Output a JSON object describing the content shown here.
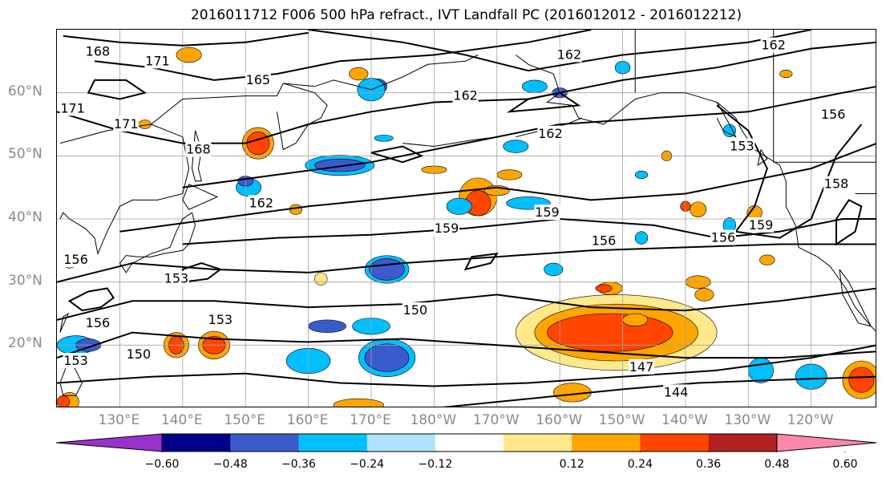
{
  "title": "2016011712 F006 500 hPa refract., IVT Landfall PC (2016012012 - 2016012212)",
  "lat_labels": [
    "60°N",
    "50°N",
    "40°N",
    "30°N",
    "20°N"
  ],
  "lat_values": [
    60,
    50,
    40,
    30,
    20
  ],
  "lon_labels": [
    "130°E",
    "140°E",
    "150°E",
    "160°E",
    "170°E",
    "180°W",
    "170°W",
    "160°W",
    "150°W",
    "140°W",
    "130°W",
    "120°W"
  ],
  "lon_values": [
    130,
    140,
    150,
    160,
    170,
    180,
    190,
    200,
    210,
    220,
    230,
    240
  ],
  "map_extent": {
    "lon_min": 120,
    "lon_max": 250.5,
    "lat_min": 10,
    "lat_max": 70
  },
  "colorbar": {
    "tick_labels": [
      "−0.60",
      "−0.48",
      "−0.36",
      "−0.24",
      "−0.12",
      "0.12",
      "0.24",
      "0.36",
      "0.48",
      "0.60"
    ],
    "colors": [
      "#9932cc",
      "#00008b",
      "#3b5bcd",
      "#00bfff",
      "#b0e2ff",
      "#ffffff",
      "#ffe98a",
      "#ffa500",
      "#ff4500",
      "#b22222",
      "#ff88aa"
    ]
  },
  "contour_labels": [
    {
      "text": "168",
      "lon": 126.5,
      "lat": 66.5
    },
    {
      "text": "171",
      "lon": 136,
      "lat": 65
    },
    {
      "text": "165",
      "lon": 152,
      "lat": 62
    },
    {
      "text": "171",
      "lon": 122.5,
      "lat": 57.5
    },
    {
      "text": "171",
      "lon": 131,
      "lat": 55
    },
    {
      "text": "168",
      "lon": 142.5,
      "lat": 51
    },
    {
      "text": "162",
      "lon": 185,
      "lat": 59.5
    },
    {
      "text": "162",
      "lon": 201.5,
      "lat": 66
    },
    {
      "text": "162",
      "lon": 234,
      "lat": 67.5
    },
    {
      "text": "162",
      "lon": 198.5,
      "lat": 53.5
    },
    {
      "text": "156",
      "lon": 243.5,
      "lat": 56.5
    },
    {
      "text": "153",
      "lon": 229,
      "lat": 51.5
    },
    {
      "text": "158",
      "lon": 244,
      "lat": 45.5
    },
    {
      "text": "162",
      "lon": 152.5,
      "lat": 42.5
    },
    {
      "text": "159",
      "lon": 198,
      "lat": 41
    },
    {
      "text": "159",
      "lon": 182,
      "lat": 38.5
    },
    {
      "text": "156",
      "lon": 207,
      "lat": 36.5
    },
    {
      "text": "156",
      "lon": 226,
      "lat": 37
    },
    {
      "text": "159",
      "lon": 232,
      "lat": 39
    },
    {
      "text": "150",
      "lon": 177,
      "lat": 25.5
    },
    {
      "text": "147",
      "lon": 213,
      "lat": 16.5
    },
    {
      "text": "144",
      "lon": 218.5,
      "lat": 12.5
    },
    {
      "text": "150",
      "lon": 133,
      "lat": 18.5
    },
    {
      "text": "153",
      "lon": 139,
      "lat": 30.5
    },
    {
      "text": "153",
      "lon": 146,
      "lat": 24
    },
    {
      "text": "156",
      "lon": 123,
      "lat": 33.5
    },
    {
      "text": "156",
      "lon": 126.5,
      "lat": 23.5
    },
    {
      "text": "153",
      "lon": 123,
      "lat": 17.5
    }
  ]
}
